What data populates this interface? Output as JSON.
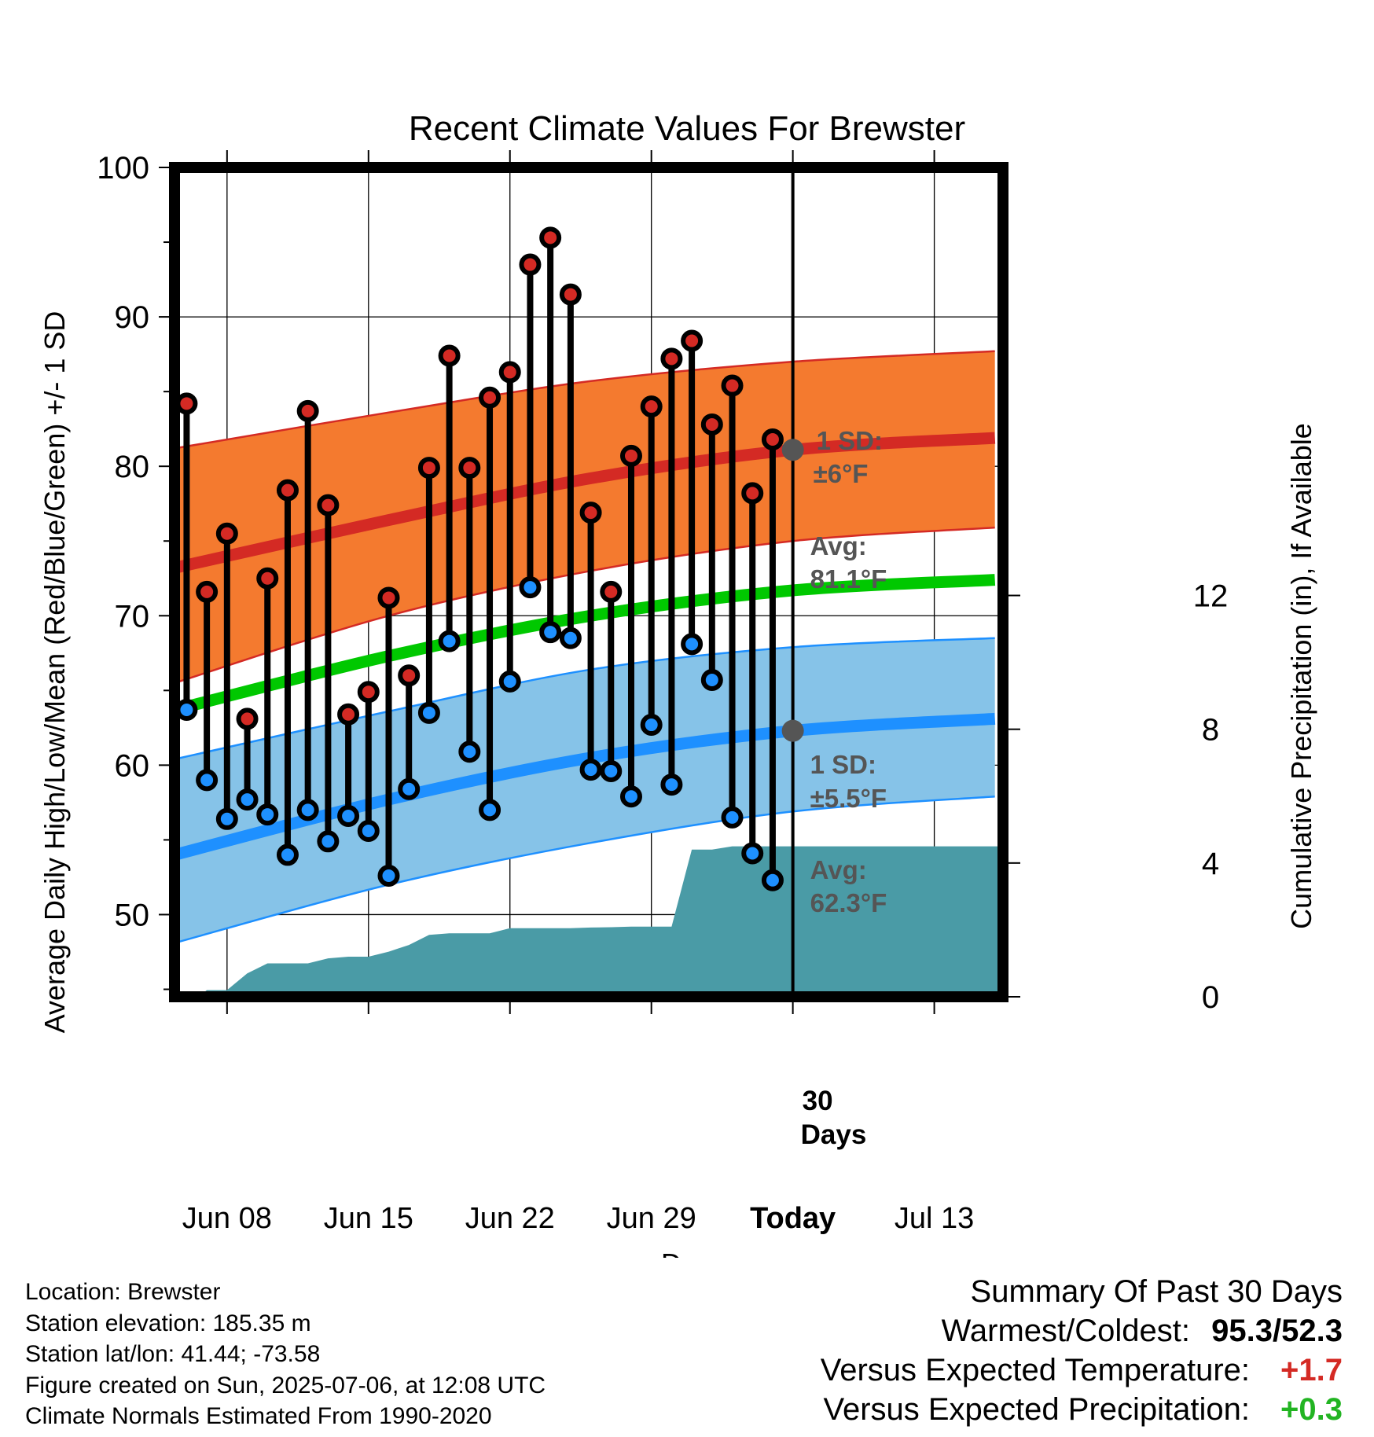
{
  "chart_data": {
    "type": "line",
    "title": "Recent Climate Values For Brewster",
    "xlabel": "Day",
    "ylabel": "Average Daily High/Low/Mean (Red/Blue/Green) +/- 1 SD",
    "y2label": "Cumulative Precipitation (in), If Available",
    "ylim": [
      44.5,
      100
    ],
    "y2lim": [
      0,
      24.8
    ],
    "xlim": [
      -0.6,
      40.4
    ],
    "yticks": [
      50,
      60,
      70,
      80,
      90,
      100
    ],
    "y2ticks": [
      0,
      4,
      8,
      12
    ],
    "xticks": [
      {
        "day": 2,
        "label": "Jun 08"
      },
      {
        "day": 9,
        "label": "Jun 15"
      },
      {
        "day": 16,
        "label": "Jun 22"
      },
      {
        "day": 23,
        "label": "Jun 29"
      },
      {
        "day": 30,
        "label": "Today"
      },
      {
        "day": 37,
        "label": "Jul 13"
      }
    ],
    "today_day": 30,
    "days_label_top": "30",
    "days_label_bottom": "Days",
    "grid": true,
    "daily": {
      "day": [
        0,
        1,
        2,
        3,
        4,
        5,
        6,
        7,
        8,
        9,
        10,
        11,
        12,
        13,
        14,
        15,
        16,
        17,
        18,
        19,
        20,
        21,
        22,
        23,
        24,
        25,
        26,
        27,
        28,
        29
      ],
      "high": [
        84.2,
        71.6,
        75.5,
        63.1,
        72.5,
        78.4,
        83.7,
        77.4,
        63.4,
        64.9,
        71.2,
        66.0,
        79.9,
        87.4,
        79.9,
        84.6,
        86.3,
        93.5,
        95.3,
        91.5,
        76.9,
        71.6,
        80.7,
        84.0,
        87.2,
        88.4,
        82.8,
        85.4,
        78.2,
        81.8
      ],
      "low": [
        63.7,
        59.0,
        56.4,
        57.7,
        56.7,
        54.0,
        57.0,
        54.9,
        56.6,
        55.6,
        52.6,
        58.4,
        63.5,
        68.3,
        60.9,
        57.0,
        65.6,
        71.9,
        68.9,
        68.5,
        59.7,
        59.6,
        57.9,
        62.7,
        58.7,
        68.1,
        65.7,
        56.5,
        54.1,
        52.3
      ]
    },
    "normals": {
      "day": [
        -0.6,
        10,
        20,
        30,
        40
      ],
      "high_avg": [
        73.2,
        76.4,
        79.2,
        81.1,
        81.9
      ],
      "high_upper": [
        81.2,
        83.6,
        85.7,
        87.0,
        87.7
      ],
      "high_lower": [
        65.5,
        70.0,
        73.0,
        75.0,
        75.9
      ],
      "mean_avg": [
        63.7,
        67.3,
        70.0,
        71.7,
        72.4
      ],
      "low_avg": [
        54.0,
        57.7,
        60.5,
        62.3,
        63.1
      ],
      "low_upper": [
        60.4,
        63.6,
        66.4,
        67.9,
        68.5
      ],
      "low_lower": [
        48.1,
        52.0,
        54.8,
        56.9,
        57.9
      ]
    },
    "precip": {
      "day": [
        -0.6,
        0.6,
        1,
        2,
        3,
        4,
        5,
        6,
        7,
        8,
        9,
        10,
        11,
        12,
        13,
        14,
        15,
        16,
        17,
        18,
        19,
        20,
        21,
        22,
        23,
        24,
        25,
        26,
        27,
        28,
        29,
        30,
        40.4
      ],
      "value": [
        0.0,
        0.0,
        0.2,
        0.2,
        0.7,
        1.0,
        1.0,
        1.0,
        1.15,
        1.2,
        1.2,
        1.35,
        1.55,
        1.85,
        1.9,
        1.9,
        1.9,
        2.05,
        2.05,
        2.05,
        2.05,
        2.07,
        2.08,
        2.1,
        2.1,
        2.1,
        4.4,
        4.4,
        4.5,
        4.5,
        4.5,
        4.5,
        4.5
      ]
    },
    "annotations": {
      "high_sd_label": "1 SD:",
      "high_sd_value": "±6°F",
      "high_avg_label": "Avg:",
      "high_avg_value": "81.1°F",
      "low_sd_label": "1 SD:",
      "low_sd_value": "±5.5°F",
      "low_avg_label": "Avg:",
      "low_avg_value": "62.3°F"
    },
    "colors": {
      "high_band": "#f47a2f",
      "high_line": "#d42a24",
      "mean_line": "#00c800",
      "low_band": "#86c3e8",
      "low_line": "#1e90ff",
      "precip": "#4a9ba6",
      "high_dot": "#d42a24",
      "low_dot": "#1e90ff",
      "today_dot": "#555555",
      "annotation": "#555555"
    }
  },
  "footer": {
    "location": "Location: Brewster",
    "elevation": "Station elevation: 185.35 m",
    "latlon": "Station lat/lon: 41.44; -73.58",
    "created": "Figure created on Sun, 2025-07-06, at 12:08 UTC",
    "normals": "Climate Normals Estimated From 1990-2020"
  },
  "summary": {
    "title": "Summary Of Past 30 Days",
    "warm_cold_label": "Warmest/Coldest:",
    "warmest": "95.3",
    "separator": "/",
    "coldest": "52.3",
    "temp_label": "Versus Expected Temperature:",
    "temp_value": "+1.7",
    "temp_color": "#d42a24",
    "precip_label": "Versus Expected Precipitation:",
    "precip_value": "+0.3",
    "precip_color": "#22b422"
  }
}
